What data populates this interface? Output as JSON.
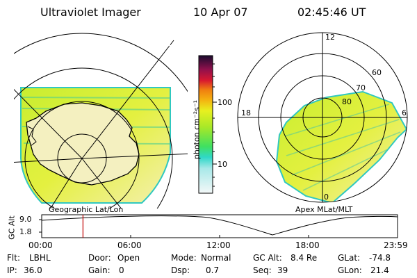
{
  "header": {
    "title": "Ultraviolet Imager",
    "date": "10 Apr 07",
    "time": "02:45:46 UT"
  },
  "left_panel": {
    "label": "Geographic Lat/Lon"
  },
  "right_panel": {
    "label": "Apex MLat/MLT",
    "mlt_labels": {
      "top": "12",
      "left": "18",
      "right": "6",
      "bottom": "0"
    },
    "lat_labels": [
      "60",
      "70",
      "80"
    ]
  },
  "colorbar": {
    "unit_label": "photon cm⁻²s⁻¹",
    "ticks": [
      "100",
      "10"
    ],
    "colors": [
      "#1a0b2e",
      "#7a0a4c",
      "#d81830",
      "#f0a010",
      "#e8f020",
      "#7ae030",
      "#40d8c8",
      "#e8f4f4"
    ]
  },
  "timeline": {
    "ylabel": "GC Alt",
    "yticks": [
      "9.0",
      "1.8"
    ],
    "xticks": [
      "00:00",
      "06:00",
      "12:00",
      "18:00",
      "23:59"
    ],
    "marker_time_fraction": 0.116
  },
  "info": {
    "flt_label": "Flt:",
    "flt_value": "LBHL",
    "ip_label": "IP:",
    "ip_value": "36.0",
    "door_label": "Door:",
    "door_value": "Open",
    "gain_label": "Gain:",
    "gain_value": "0",
    "mode_label": "Mode:",
    "mode_value": "Normal",
    "dsp_label": "Dsp:",
    "dsp_value": "0.7",
    "gcalt_label": "GC Alt:",
    "gcalt_value": "8.4 Re",
    "seq_label": "Seq:",
    "seq_value": "39",
    "glat_label": "GLat:",
    "glat_value": "-74.8",
    "glon_label": "GLon:",
    "glon_value": "21.4"
  }
}
